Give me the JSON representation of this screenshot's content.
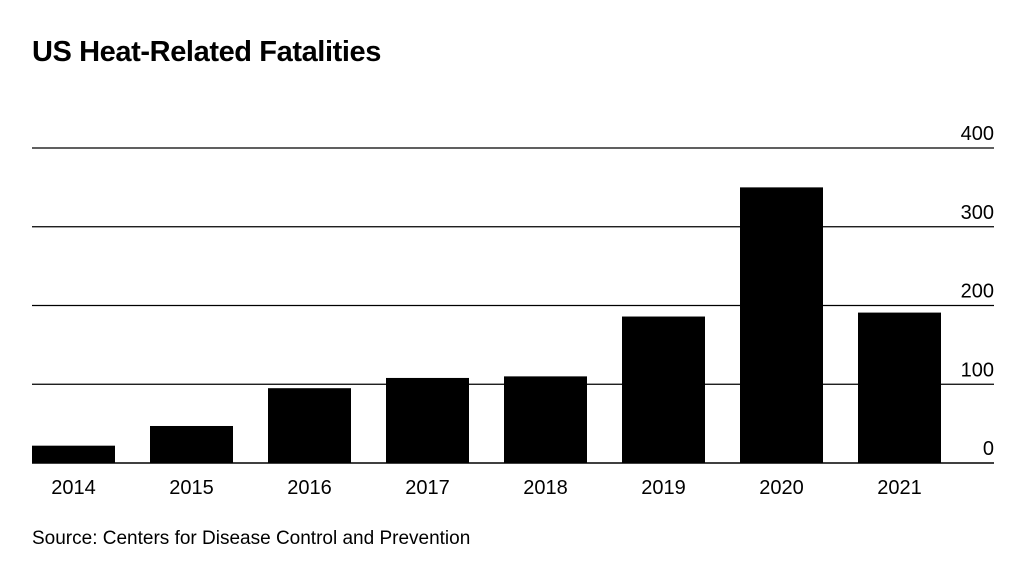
{
  "chart_data": {
    "type": "bar",
    "title": "US Heat-Related Fatalities",
    "source": "Source: Centers for Disease Control and Prevention",
    "categories": [
      "2014",
      "2015",
      "2016",
      "2017",
      "2018",
      "2019",
      "2020",
      "2021"
    ],
    "values": [
      22,
      47,
      95,
      108,
      110,
      186,
      350,
      191
    ],
    "xlabel": "",
    "ylabel": "",
    "ylim": [
      0,
      400
    ],
    "yticks": [
      0,
      100,
      200,
      300,
      400
    ],
    "y_axis_position": "right",
    "grid": true,
    "bar_color": "#000000",
    "grid_color": "#000000"
  }
}
